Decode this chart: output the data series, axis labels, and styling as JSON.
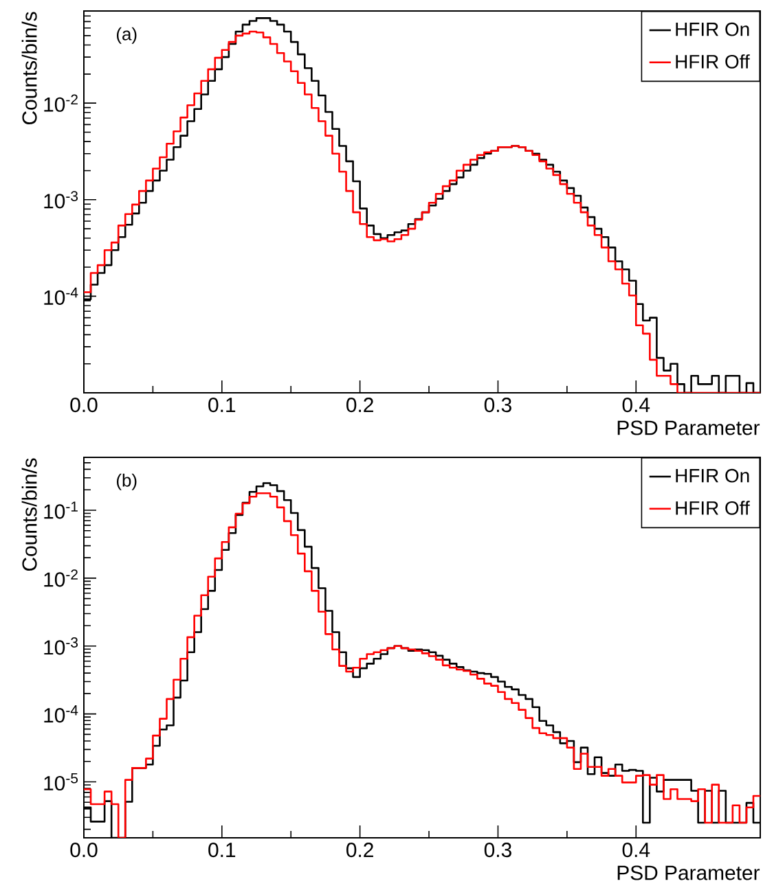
{
  "chart_data": [
    {
      "type": "histogram",
      "annotations": [
        "(a)"
      ],
      "xlabel": "PSD Parameter",
      "ylabel": "Counts/bin/s",
      "log": "y",
      "legend": "top right",
      "bins": [
        0,
        0.005,
        0.01,
        0.015,
        0.02,
        0.025,
        0.03,
        0.035,
        0.04,
        0.045,
        0.05,
        0.055,
        0.06,
        0.065,
        0.07,
        0.075,
        0.08,
        0.085,
        0.09,
        0.095,
        0.1,
        0.105,
        0.11,
        0.115,
        0.12,
        0.125,
        0.13,
        0.135,
        0.14,
        0.145,
        0.15,
        0.155,
        0.16,
        0.165,
        0.17,
        0.175,
        0.18,
        0.185,
        0.19,
        0.195,
        0.2,
        0.205,
        0.21,
        0.215,
        0.22,
        0.225,
        0.23,
        0.235,
        0.24,
        0.245,
        0.25,
        0.255,
        0.26,
        0.265,
        0.27,
        0.275,
        0.28,
        0.285,
        0.29,
        0.295,
        0.3,
        0.305,
        0.31,
        0.315,
        0.32,
        0.325,
        0.33,
        0.335,
        0.34,
        0.345,
        0.35,
        0.355,
        0.36,
        0.365,
        0.37,
        0.375,
        0.38,
        0.385,
        0.39,
        0.395,
        0.4,
        0.405,
        0.41,
        0.415,
        0.42,
        0.425,
        0.43,
        0.435,
        0.44,
        0.445,
        0.45,
        0.455,
        0.46,
        0.465,
        0.47,
        0.475,
        0.48,
        0.485,
        0.49
      ],
      "xlim": [
        0,
        0.49
      ],
      "xticks": [
        {
          "value": 0,
          "label": "0.0"
        },
        {
          "value": 0.1,
          "label": "0.1"
        },
        {
          "value": 0.2,
          "label": "0.2"
        },
        {
          "value": 0.3,
          "label": "0.3"
        },
        {
          "value": 0.4,
          "label": "0.4"
        }
      ],
      "ylim": [
        1e-05,
        0.09
      ],
      "yticks": [
        {
          "value": 0.0001,
          "label": "10$^{-4}$"
        },
        {
          "value": 0.001,
          "label": "10$^{-3}$"
        },
        {
          "value": 0.01,
          "label": "10$^{-2}$"
        }
      ],
      "series": [
        {
          "name": "HFIR On",
          "color": "#000000",
          "values": [
            9.3e-05,
            0.000132,
            0.000174,
            0.00021,
            0.0003,
            0.00041,
            0.00055,
            0.00072,
            0.00093,
            0.00123,
            0.00158,
            0.002,
            0.0026,
            0.0035,
            0.0046,
            0.0065,
            0.0087,
            0.0123,
            0.017,
            0.0224,
            0.03,
            0.041,
            0.055,
            0.065,
            0.071,
            0.076,
            0.076,
            0.071,
            0.065,
            0.055,
            0.043,
            0.032,
            0.023,
            0.017,
            0.012,
            0.0081,
            0.0054,
            0.0036,
            0.0025,
            0.00155,
            0.00081,
            0.00054,
            0.00044,
            0.0004,
            0.00043,
            0.00046,
            0.00048,
            0.00056,
            0.00063,
            0.00074,
            0.00087,
            0.00102,
            0.00123,
            0.00145,
            0.0017,
            0.002,
            0.0023,
            0.0027,
            0.003,
            0.0032,
            0.0035,
            0.0035,
            0.0036,
            0.0035,
            0.0032,
            0.003,
            0.0026,
            0.0023,
            0.00195,
            0.00158,
            0.00132,
            0.0011,
            0.00083,
            0.00066,
            0.0005,
            0.00041,
            0.00032,
            0.00023,
            0.00019,
            0.000145,
            8.3e-05,
            5.6e-05,
            6e-05,
            2.3e-05,
            1.7e-05,
            2e-05,
            1.23e-05,
            null,
            1.5e-05,
            1.23e-05,
            1.23e-05,
            1.5e-05,
            null,
            1.5e-05,
            1.5e-05,
            null,
            1.26e-05,
            null
          ]
        },
        {
          "name": "HFIR Off",
          "color": "#ff0000",
          "values": [
            0.00011,
            0.000174,
            0.00021,
            0.0003,
            0.00036,
            0.00054,
            0.00071,
            0.00089,
            0.00123,
            0.00158,
            0.0021,
            0.00275,
            0.0038,
            0.0051,
            0.0071,
            0.0095,
            0.0126,
            0.017,
            0.0224,
            0.0295,
            0.0355,
            0.043,
            0.05,
            0.0525,
            0.055,
            0.054,
            0.048,
            0.041,
            0.033,
            0.027,
            0.0214,
            0.0162,
            0.0123,
            0.0089,
            0.0065,
            0.0046,
            0.003,
            0.00195,
            0.00123,
            0.00074,
            0.00056,
            0.00041,
            0.00038,
            0.00039,
            0.00037,
            0.00039,
            0.00043,
            0.0005,
            0.00062,
            0.00074,
            0.00093,
            0.00115,
            0.00138,
            0.00158,
            0.002,
            0.0023,
            0.0026,
            0.0029,
            0.0031,
            0.0032,
            0.0035,
            0.0035,
            0.0036,
            0.0035,
            0.0032,
            0.0029,
            0.0025,
            0.0021,
            0.0018,
            0.00145,
            0.00115,
            0.00093,
            0.00074,
            0.00054,
            0.00043,
            0.00032,
            0.00023,
            0.00019,
            0.000135,
            0.000102,
            5e-05,
            4.1e-05,
            2.2e-05,
            1.5e-05,
            1.5e-05,
            1.23e-05,
            null,
            null,
            null,
            null,
            null,
            null,
            null,
            null,
            null,
            null,
            null,
            null
          ]
        }
      ]
    },
    {
      "type": "histogram",
      "annotations": [
        "(b)"
      ],
      "xlabel": "PSD Parameter",
      "ylabel": "Counts/bin/s",
      "log": "y",
      "legend": "top right",
      "bins": [
        0,
        0.005,
        0.01,
        0.015,
        0.02,
        0.025,
        0.03,
        0.035,
        0.04,
        0.045,
        0.05,
        0.055,
        0.06,
        0.065,
        0.07,
        0.075,
        0.08,
        0.085,
        0.09,
        0.095,
        0.1,
        0.105,
        0.11,
        0.115,
        0.12,
        0.125,
        0.13,
        0.135,
        0.14,
        0.145,
        0.15,
        0.155,
        0.16,
        0.165,
        0.17,
        0.175,
        0.18,
        0.185,
        0.19,
        0.195,
        0.2,
        0.205,
        0.21,
        0.215,
        0.22,
        0.225,
        0.23,
        0.235,
        0.24,
        0.245,
        0.25,
        0.255,
        0.26,
        0.265,
        0.27,
        0.275,
        0.28,
        0.285,
        0.29,
        0.295,
        0.3,
        0.305,
        0.31,
        0.315,
        0.32,
        0.325,
        0.33,
        0.335,
        0.34,
        0.345,
        0.35,
        0.355,
        0.36,
        0.365,
        0.37,
        0.375,
        0.38,
        0.385,
        0.39,
        0.395,
        0.4,
        0.405,
        0.41,
        0.415,
        0.42,
        0.425,
        0.43,
        0.435,
        0.44,
        0.445,
        0.45,
        0.455,
        0.46,
        0.465,
        0.47,
        0.475,
        0.48,
        0.485,
        0.49
      ],
      "xlim": [
        0,
        0.49
      ],
      "xticks": [
        {
          "value": 0,
          "label": "0.0"
        },
        {
          "value": 0.1,
          "label": "0.1"
        },
        {
          "value": 0.2,
          "label": "0.2"
        },
        {
          "value": 0.3,
          "label": "0.3"
        },
        {
          "value": 0.4,
          "label": "0.4"
        }
      ],
      "ylim": [
        1.5e-06,
        0.6
      ],
      "yticks": [
        {
          "value": 1e-05,
          "label": "10$^{-5}$"
        },
        {
          "value": 0.0001,
          "label": "10$^{-4}$"
        },
        {
          "value": 0.001,
          "label": "10$^{-3}$"
        },
        {
          "value": 0.01,
          "label": "10$^{-2}$"
        },
        {
          "value": 0.1,
          "label": "10$^{-1}$"
        }
      ],
      "series": [
        {
          "name": "HFIR On",
          "color": "#000000",
          "values": [
            4.2e-06,
            2.6e-06,
            2.6e-06,
            5.2e-06,
            null,
            null,
            5.1e-06,
            1.6e-05,
            1.6e-05,
            1.8e-05,
            3.4e-05,
            5.9e-05,
            6.8e-05,
            0.000174,
            0.00031,
            0.00081,
            0.0016,
            0.0035,
            0.0065,
            0.0132,
            0.026,
            0.046,
            0.085,
            0.129,
            0.186,
            0.224,
            0.251,
            0.234,
            0.191,
            0.141,
            0.091,
            0.051,
            0.029,
            0.0141,
            0.0071,
            0.0033,
            0.0016,
            0.00081,
            0.00047,
            0.00035,
            0.00047,
            0.00055,
            0.00065,
            0.00076,
            0.00093,
            0.001,
            0.00093,
            0.00085,
            0.00089,
            0.00087,
            0.00081,
            0.00072,
            0.00063,
            0.00055,
            0.00049,
            0.00044,
            0.00042,
            0.0004,
            0.00039,
            0.00035,
            0.0003,
            0.00025,
            0.00023,
            0.00019,
            0.000166,
            0.000126,
            7.9e-05,
            6.8e-05,
            5.4e-05,
            3.7e-05,
            4e-05,
            1.95e-05,
            3.2e-05,
            1.3e-05,
            2.3e-05,
            1.35e-05,
            1.23e-05,
            1.8e-05,
            1.45e-05,
            1.5e-05,
            1.45e-05,
            2.5e-06,
            1.15e-05,
            7.2e-06,
            1.07e-05,
            1.07e-05,
            1.07e-05,
            1.07e-05,
            7.4e-06,
            2.5e-06,
            7.4e-06,
            2.5e-06,
            7.4e-06,
            2.5e-06,
            2.5e-06,
            2.5e-06,
            4.9e-06,
            2.5e-06
          ]
        },
        {
          "name": "HFIR Off",
          "color": "#ff0000",
          "values": [
            7.8e-06,
            4.7e-06,
            4.7e-06,
            7.2e-06,
            4.7e-06,
            null,
            1.07e-05,
            1.6e-05,
            1.6e-05,
            2.2e-05,
            4.8e-05,
            8.5e-05,
            0.000166,
            0.00032,
            0.00065,
            0.00135,
            0.0028,
            0.0056,
            0.0105,
            0.0195,
            0.034,
            0.056,
            0.089,
            0.126,
            0.158,
            0.178,
            0.178,
            0.158,
            0.11,
            0.069,
            0.043,
            0.023,
            0.0126,
            0.0065,
            0.0032,
            0.0015,
            0.00089,
            0.00051,
            0.00042,
            0.00048,
            0.00065,
            0.00076,
            0.00081,
            0.00087,
            0.00093,
            0.001,
            0.00093,
            0.00089,
            0.00085,
            0.00078,
            0.00071,
            0.00063,
            0.00052,
            0.00048,
            0.00045,
            0.00043,
            0.00038,
            0.00033,
            0.00028,
            0.00026,
            0.00021,
            0.000166,
            0.000145,
            0.000115,
            8.7e-05,
            6.2e-05,
            5.2e-05,
            4.9e-05,
            4.4e-05,
            4.4e-05,
            3.2e-05,
            1.55e-05,
            2.6e-05,
            1.66e-05,
            1.66e-05,
            1.23e-05,
            1.55e-05,
            1.23e-05,
            9.8e-06,
            9.8e-06,
            1.23e-05,
            1.26e-05,
            9.1e-06,
            1.26e-05,
            5.6e-06,
            7.8e-06,
            5.6e-06,
            5.6e-06,
            5.2e-06,
            7.8e-06,
            2.5e-06,
            9.1e-06,
            2.5e-06,
            2.5e-06,
            4.5e-06,
            2.5e-06,
            4.2e-06,
            6.2e-06
          ]
        }
      ]
    }
  ]
}
